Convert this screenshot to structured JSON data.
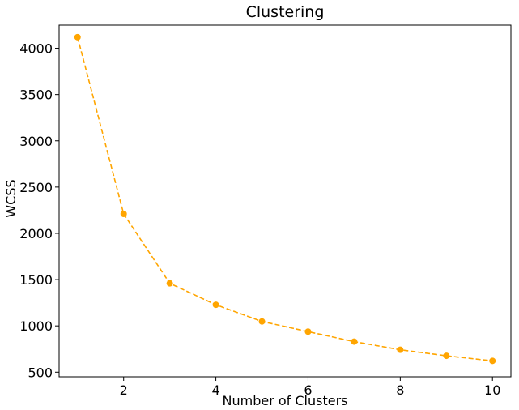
{
  "chart_data": {
    "type": "line",
    "title": "Clustering",
    "xlabel": "Number of Clusters",
    "ylabel": "WCSS",
    "x": [
      1,
      2,
      3,
      4,
      5,
      6,
      7,
      8,
      9,
      10
    ],
    "series": [
      {
        "values": [
          4120,
          2210,
          1460,
          1228,
          1048,
          938,
          830,
          742,
          677,
          622
        ]
      }
    ],
    "xlim": [
      0.6,
      10.4
    ],
    "ylim": [
      450,
      4250
    ],
    "x_ticks": [
      "2",
      "4",
      "6",
      "8",
      "10"
    ],
    "y_ticks": [
      "500",
      "1000",
      "1500",
      "2000",
      "2500",
      "3000",
      "3500",
      "4000"
    ],
    "line_style": "dashed",
    "marker": "circle",
    "color": "#ffa500",
    "grid": false,
    "legend": "none"
  }
}
